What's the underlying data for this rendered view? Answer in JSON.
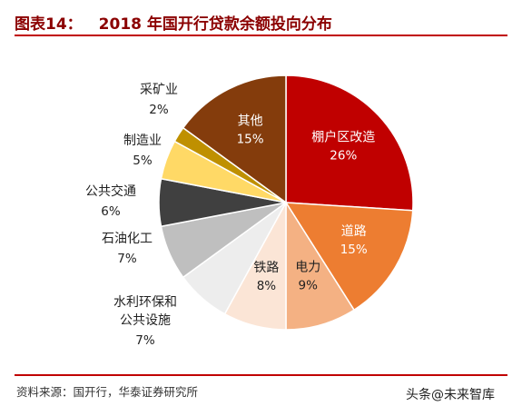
{
  "header": {
    "figure_label": "图表14：",
    "title": "2018 年国开行贷款余额投向分布"
  },
  "chart_data": {
    "type": "pie",
    "title": "2018 年国开行贷款余额投向分布",
    "unit": "%",
    "start_angle_deg": 0,
    "slices": [
      {
        "label": "棚户区改造",
        "value": 26,
        "color": "#c00000",
        "label_color": "#ffffff",
        "label_inside": true
      },
      {
        "label": "道路",
        "value": 15,
        "color": "#ed7d31",
        "label_color": "#ffffff",
        "label_inside": true
      },
      {
        "label": "电力",
        "value": 9,
        "color": "#f4b183",
        "label_color": "#222222",
        "label_inside": true
      },
      {
        "label": "铁路",
        "value": 8,
        "color": "#fbe5d6",
        "label_color": "#222222",
        "label_inside": true
      },
      {
        "label": "水利环保和公共设施",
        "value": 7,
        "color": "#ededed",
        "label_color": "#222222",
        "label_inside": false
      },
      {
        "label": "石油化工",
        "value": 7,
        "color": "#bfbfbf",
        "label_color": "#222222",
        "label_inside": false
      },
      {
        "label": "公共交通",
        "value": 6,
        "color": "#404040",
        "label_color": "#222222",
        "label_inside": false
      },
      {
        "label": "制造业",
        "value": 5,
        "color": "#ffd966",
        "label_color": "#222222",
        "label_inside": false
      },
      {
        "label": "采矿业",
        "value": 2,
        "color": "#bf9000",
        "label_color": "#222222",
        "label_inside": false
      },
      {
        "label": "其他",
        "value": 15,
        "color": "#843c0c",
        "label_color": "#ffffff",
        "label_inside": true
      }
    ]
  },
  "footer": {
    "source": "资料来源：国开行，华泰证券研究所",
    "watermark_prefix": "头条",
    "watermark_handle": "@未来智库"
  }
}
